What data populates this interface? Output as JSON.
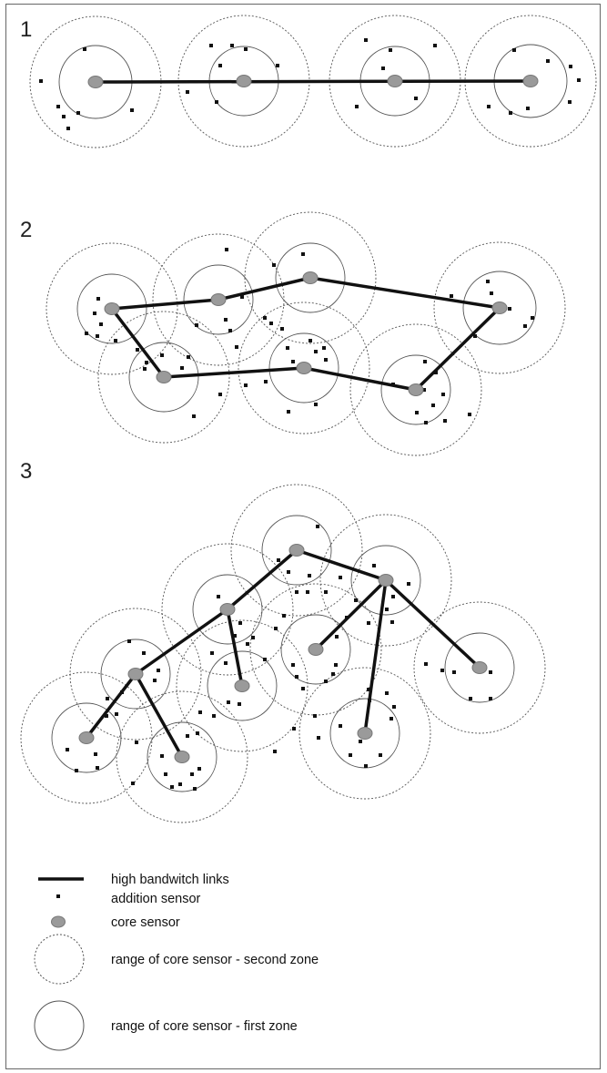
{
  "panels": [
    {
      "label": "1"
    },
    {
      "label": "2"
    },
    {
      "label": "3"
    }
  ],
  "legend": {
    "links": "high bandwitch links",
    "addition": "addition sensor",
    "core": "core sensor",
    "second_zone": "range of core sensor - second zone",
    "first_zone": "range of core sensor - first zone"
  },
  "colors": {
    "link": "#111111",
    "core_fill": "#9a9a9a",
    "core_stroke": "#777777",
    "circle": "#555555",
    "dot": "#111111"
  }
}
